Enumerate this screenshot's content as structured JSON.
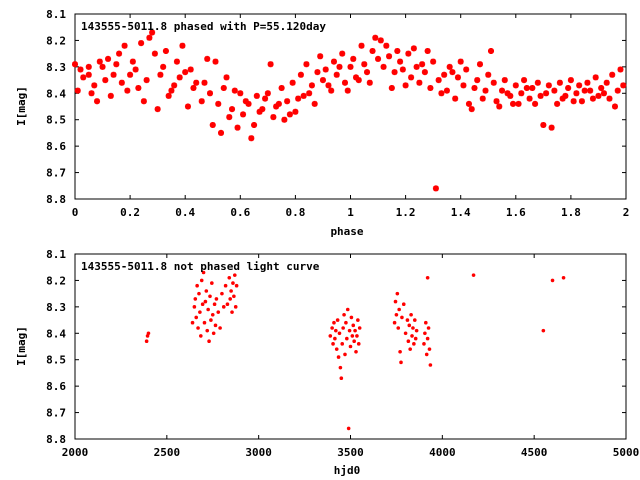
{
  "colors": {
    "marker": "#ff0000",
    "axis": "#000000",
    "background": "#ffffff"
  },
  "chart_data": [
    {
      "type": "scatter",
      "title": "143555-5011.8 phased with P=55.120day",
      "xlabel": "phase",
      "ylabel": "I[mag]",
      "xlim": [
        0,
        2
      ],
      "ylim": [
        8.1,
        8.8
      ],
      "y_inverted": true,
      "grid": false,
      "xticks": [
        "0",
        "0.2",
        "0.4",
        "0.6",
        "0.8",
        "1",
        "1.2",
        "1.4",
        "1.6",
        "1.8",
        "2"
      ],
      "yticks": [
        "8.1",
        "8.2",
        "8.3",
        "8.4",
        "8.5",
        "8.6",
        "8.7",
        "8.8"
      ],
      "marker": "star",
      "points": [
        [
          0.02,
          8.31
        ],
        [
          0.03,
          8.34
        ],
        [
          0.05,
          8.3
        ],
        [
          0.06,
          8.4
        ],
        [
          0.07,
          8.37
        ],
        [
          0.09,
          8.28
        ],
        [
          0.1,
          8.3
        ],
        [
          0.12,
          8.27
        ],
        [
          0.13,
          8.41
        ],
        [
          0.14,
          8.33
        ],
        [
          0.16,
          8.25
        ],
        [
          0.17,
          8.36
        ],
        [
          0.18,
          8.22
        ],
        [
          0.19,
          8.39
        ],
        [
          0.21,
          8.28
        ],
        [
          0.22,
          8.31
        ],
        [
          0.23,
          8.38
        ],
        [
          0.24,
          8.21
        ],
        [
          0.25,
          8.43
        ],
        [
          0.26,
          8.35
        ],
        [
          0.28,
          8.17
        ],
        [
          0.29,
          8.25
        ],
        [
          0.3,
          8.46
        ],
        [
          0.31,
          8.33
        ],
        [
          0.32,
          8.3
        ],
        [
          0.33,
          8.24
        ],
        [
          0.35,
          8.39
        ],
        [
          0.36,
          8.37
        ],
        [
          0.37,
          8.28
        ],
        [
          0.38,
          8.34
        ],
        [
          0.4,
          8.32
        ],
        [
          0.41,
          8.45
        ],
        [
          0.43,
          8.38
        ],
        [
          0.44,
          8.36
        ],
        [
          0.46,
          8.43
        ],
        [
          0.48,
          8.27
        ],
        [
          0.49,
          8.4
        ],
        [
          0.5,
          8.52
        ],
        [
          0.52,
          8.44
        ],
        [
          0.53,
          8.55
        ],
        [
          0.54,
          8.38
        ],
        [
          0.56,
          8.49
        ],
        [
          0.57,
          8.46
        ],
        [
          0.59,
          8.53
        ],
        [
          0.6,
          8.4
        ],
        [
          0.61,
          8.48
        ],
        [
          0.62,
          8.43
        ],
        [
          0.64,
          8.57
        ],
        [
          0.65,
          8.52
        ],
        [
          0.66,
          8.41
        ],
        [
          0.68,
          8.46
        ],
        [
          0.69,
          8.42
        ],
        [
          0.7,
          8.4
        ],
        [
          0.72,
          8.49
        ],
        [
          0.73,
          8.45
        ],
        [
          0.75,
          8.38
        ],
        [
          0.76,
          8.5
        ],
        [
          0.77,
          8.43
        ],
        [
          0.79,
          8.36
        ],
        [
          0.8,
          8.47
        ],
        [
          0.82,
          8.33
        ],
        [
          0.83,
          8.41
        ],
        [
          0.84,
          8.29
        ],
        [
          0.86,
          8.37
        ],
        [
          0.87,
          8.44
        ],
        [
          0.89,
          8.26
        ],
        [
          0.9,
          8.35
        ],
        [
          0.91,
          8.31
        ],
        [
          0.93,
          8.39
        ],
        [
          0.94,
          8.28
        ],
        [
          0.95,
          8.33
        ],
        [
          0.97,
          8.25
        ],
        [
          0.98,
          8.36
        ],
        [
          1.0,
          8.3
        ],
        [
          1.01,
          8.27
        ],
        [
          1.02,
          8.34
        ],
        [
          1.04,
          8.22
        ],
        [
          1.05,
          8.29
        ],
        [
          1.06,
          8.32
        ],
        [
          1.08,
          8.24
        ],
        [
          1.09,
          8.19
        ],
        [
          1.1,
          8.27
        ],
        [
          1.12,
          8.3
        ],
        [
          1.13,
          8.22
        ],
        [
          1.14,
          8.26
        ],
        [
          1.16,
          8.32
        ],
        [
          1.17,
          8.24
        ],
        [
          1.18,
          8.28
        ],
        [
          1.19,
          8.31
        ],
        [
          1.21,
          8.25
        ],
        [
          1.22,
          8.34
        ],
        [
          1.23,
          8.23
        ],
        [
          1.25,
          8.36
        ],
        [
          1.26,
          8.29
        ],
        [
          1.27,
          8.32
        ],
        [
          1.29,
          8.38
        ],
        [
          1.3,
          8.28
        ],
        [
          1.31,
          8.76
        ],
        [
          1.32,
          8.35
        ],
        [
          1.34,
          8.33
        ],
        [
          1.35,
          8.39
        ],
        [
          1.36,
          8.3
        ],
        [
          1.38,
          8.42
        ],
        [
          1.39,
          8.34
        ],
        [
          1.41,
          8.37
        ],
        [
          1.42,
          8.31
        ],
        [
          1.43,
          8.44
        ],
        [
          1.45,
          8.38
        ],
        [
          1.46,
          8.35
        ],
        [
          1.48,
          8.42
        ],
        [
          1.49,
          8.39
        ],
        [
          1.5,
          8.33
        ],
        [
          1.52,
          8.36
        ],
        [
          1.53,
          8.43
        ],
        [
          1.55,
          8.39
        ],
        [
          1.56,
          8.35
        ],
        [
          1.58,
          8.41
        ],
        [
          1.59,
          8.44
        ],
        [
          1.6,
          8.37
        ],
        [
          1.62,
          8.4
        ],
        [
          1.63,
          8.35
        ],
        [
          1.65,
          8.42
        ],
        [
          1.66,
          8.38
        ],
        [
          1.68,
          8.36
        ],
        [
          1.69,
          8.41
        ],
        [
          1.7,
          8.52
        ],
        [
          1.72,
          8.37
        ],
        [
          1.73,
          8.53
        ],
        [
          1.74,
          8.39
        ],
        [
          1.76,
          8.36
        ],
        [
          1.77,
          8.42
        ],
        [
          1.79,
          8.38
        ],
        [
          1.8,
          8.35
        ],
        [
          1.82,
          8.4
        ],
        [
          1.83,
          8.37
        ],
        [
          1.84,
          8.43
        ],
        [
          1.86,
          8.36
        ],
        [
          1.87,
          8.39
        ],
        [
          1.89,
          8.34
        ],
        [
          1.9,
          8.41
        ],
        [
          1.91,
          8.38
        ],
        [
          1.93,
          8.36
        ],
        [
          1.94,
          8.42
        ],
        [
          1.95,
          8.33
        ],
        [
          1.97,
          8.39
        ],
        [
          1.98,
          8.31
        ],
        [
          0.0,
          8.29
        ],
        [
          0.01,
          8.39
        ],
        [
          0.05,
          8.33
        ],
        [
          0.08,
          8.43
        ],
        [
          0.11,
          8.35
        ],
        [
          0.15,
          8.29
        ],
        [
          0.2,
          8.33
        ],
        [
          0.27,
          8.19
        ],
        [
          0.34,
          8.41
        ],
        [
          0.39,
          8.22
        ],
        [
          0.42,
          8.31
        ],
        [
          0.47,
          8.36
        ],
        [
          0.51,
          8.28
        ],
        [
          0.55,
          8.34
        ],
        [
          0.58,
          8.39
        ],
        [
          0.63,
          8.44
        ],
        [
          0.67,
          8.47
        ],
        [
          0.71,
          8.29
        ],
        [
          0.74,
          8.44
        ],
        [
          0.78,
          8.48
        ],
        [
          0.81,
          8.42
        ],
        [
          0.85,
          8.4
        ],
        [
          0.88,
          8.32
        ],
        [
          0.92,
          8.37
        ],
        [
          0.96,
          8.3
        ],
        [
          0.99,
          8.39
        ],
        [
          1.03,
          8.35
        ],
        [
          1.07,
          8.36
        ],
        [
          1.11,
          8.2
        ],
        [
          1.15,
          8.38
        ],
        [
          1.2,
          8.37
        ],
        [
          1.24,
          8.3
        ],
        [
          1.28,
          8.24
        ],
        [
          1.33,
          8.4
        ],
        [
          1.37,
          8.32
        ],
        [
          1.4,
          8.28
        ],
        [
          1.44,
          8.46
        ],
        [
          1.47,
          8.29
        ],
        [
          1.51,
          8.24
        ],
        [
          1.54,
          8.45
        ],
        [
          1.57,
          8.4
        ],
        [
          1.61,
          8.44
        ],
        [
          1.64,
          8.38
        ],
        [
          1.67,
          8.44
        ],
        [
          1.71,
          8.4
        ],
        [
          1.75,
          8.44
        ],
        [
          1.78,
          8.41
        ],
        [
          1.81,
          8.43
        ],
        [
          1.85,
          8.39
        ],
        [
          1.88,
          8.42
        ],
        [
          1.92,
          8.4
        ],
        [
          1.96,
          8.45
        ],
        [
          1.99,
          8.37
        ]
      ]
    },
    {
      "type": "scatter",
      "title": "143555-5011.8 not phased light curve",
      "xlabel": "hjd0",
      "ylabel": "I[mag]",
      "xlim": [
        2000,
        5000
      ],
      "ylim": [
        8.1,
        8.8
      ],
      "y_inverted": true,
      "grid": false,
      "xticks": [
        "2000",
        "2500",
        "3000",
        "3500",
        "4000",
        "4500",
        "5000"
      ],
      "yticks": [
        "8.1",
        "8.2",
        "8.3",
        "8.4",
        "8.5",
        "8.6",
        "8.7",
        "8.8"
      ],
      "marker": "dot",
      "points": [
        [
          2390,
          8.43
        ],
        [
          2395,
          8.41
        ],
        [
          2400,
          8.4
        ],
        [
          2640,
          8.36
        ],
        [
          2650,
          8.3
        ],
        [
          2655,
          8.27
        ],
        [
          2660,
          8.34
        ],
        [
          2665,
          8.22
        ],
        [
          2670,
          8.38
        ],
        [
          2675,
          8.25
        ],
        [
          2680,
          8.32
        ],
        [
          2685,
          8.41
        ],
        [
          2690,
          8.2
        ],
        [
          2695,
          8.29
        ],
        [
          2700,
          8.17
        ],
        [
          2705,
          8.36
        ],
        [
          2710,
          8.28
        ],
        [
          2715,
          8.24
        ],
        [
          2720,
          8.39
        ],
        [
          2725,
          8.31
        ],
        [
          2730,
          8.43
        ],
        [
          2735,
          8.26
        ],
        [
          2740,
          8.35
        ],
        [
          2745,
          8.21
        ],
        [
          2750,
          8.33
        ],
        [
          2755,
          8.4
        ],
        [
          2760,
          8.29
        ],
        [
          2765,
          8.37
        ],
        [
          2770,
          8.27
        ],
        [
          2780,
          8.32
        ],
        [
          2790,
          8.38
        ],
        [
          2800,
          8.25
        ],
        [
          2810,
          8.3
        ],
        [
          2820,
          8.22
        ],
        [
          2830,
          8.29
        ],
        [
          2840,
          8.19
        ],
        [
          2845,
          8.27
        ],
        [
          2850,
          8.24
        ],
        [
          2855,
          8.32
        ],
        [
          2860,
          8.21
        ],
        [
          2865,
          8.26
        ],
        [
          2870,
          8.18
        ],
        [
          2875,
          8.3
        ],
        [
          2880,
          8.22
        ],
        [
          3390,
          8.41
        ],
        [
          3400,
          8.38
        ],
        [
          3405,
          8.44
        ],
        [
          3410,
          8.36
        ],
        [
          3415,
          8.42
        ],
        [
          3420,
          8.39
        ],
        [
          3425,
          8.46
        ],
        [
          3430,
          8.35
        ],
        [
          3435,
          8.49
        ],
        [
          3440,
          8.4
        ],
        [
          3445,
          8.53
        ],
        [
          3450,
          8.57
        ],
        [
          3455,
          8.44
        ],
        [
          3460,
          8.38
        ],
        [
          3465,
          8.33
        ],
        [
          3470,
          8.48
        ],
        [
          3475,
          8.36
        ],
        [
          3480,
          8.42
        ],
        [
          3485,
          8.31
        ],
        [
          3490,
          8.76
        ],
        [
          3495,
          8.39
        ],
        [
          3500,
          8.45
        ],
        [
          3505,
          8.34
        ],
        [
          3510,
          8.41
        ],
        [
          3515,
          8.37
        ],
        [
          3520,
          8.43
        ],
        [
          3525,
          8.39
        ],
        [
          3530,
          8.47
        ],
        [
          3535,
          8.41
        ],
        [
          3540,
          8.35
        ],
        [
          3545,
          8.44
        ],
        [
          3550,
          8.38
        ],
        [
          3740,
          8.36
        ],
        [
          3745,
          8.28
        ],
        [
          3750,
          8.33
        ],
        [
          3755,
          8.25
        ],
        [
          3760,
          8.38
        ],
        [
          3765,
          8.31
        ],
        [
          3770,
          8.47
        ],
        [
          3775,
          8.51
        ],
        [
          3780,
          8.34
        ],
        [
          3790,
          8.29
        ],
        [
          3800,
          8.4
        ],
        [
          3810,
          8.35
        ],
        [
          3815,
          8.43
        ],
        [
          3820,
          8.37
        ],
        [
          3825,
          8.46
        ],
        [
          3830,
          8.33
        ],
        [
          3835,
          8.41
        ],
        [
          3840,
          8.38
        ],
        [
          3845,
          8.44
        ],
        [
          3850,
          8.35
        ],
        [
          3855,
          8.42
        ],
        [
          3860,
          8.39
        ],
        [
          3900,
          8.44
        ],
        [
          3905,
          8.4
        ],
        [
          3910,
          8.36
        ],
        [
          3915,
          8.48
        ],
        [
          3920,
          8.42
        ],
        [
          3925,
          8.38
        ],
        [
          3930,
          8.46
        ],
        [
          3935,
          8.52
        ],
        [
          3920,
          8.19
        ],
        [
          4170,
          8.18
        ],
        [
          4550,
          8.39
        ],
        [
          4600,
          8.2
        ],
        [
          4660,
          8.19
        ]
      ]
    }
  ]
}
